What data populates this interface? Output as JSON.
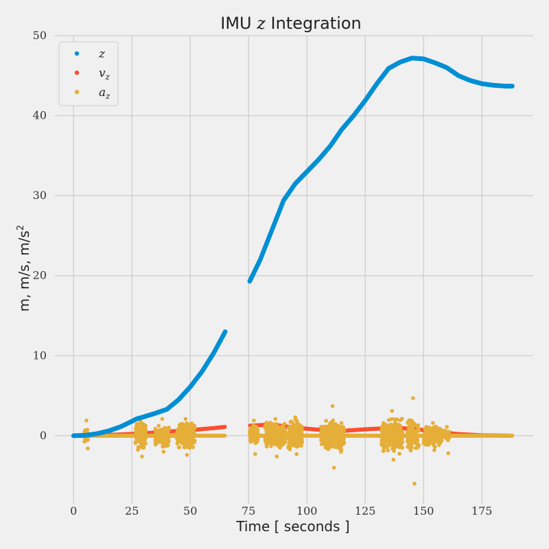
{
  "chart_data": {
    "type": "scatter",
    "title": {
      "prefix": "IMU ",
      "variable": "z",
      "suffix": " Integration"
    },
    "xlabel": "Time [ seconds ]",
    "ylabel": {
      "text": "m, m/s, m/s",
      "superscript": "2"
    },
    "xlim": [
      -8,
      197
    ],
    "ylim": [
      -8.5,
      50
    ],
    "xticks": [
      0,
      25,
      50,
      75,
      100,
      125,
      150,
      175
    ],
    "yticks": [
      0,
      10,
      20,
      30,
      40,
      50
    ],
    "grid": true,
    "legend_position": "top-left",
    "gap": [
      65,
      75.5
    ],
    "colors": {
      "background": "#f0f0f0",
      "grid": "#cbcbcb",
      "z": "#008fd5",
      "vz": "#fc4f30",
      "az": "#e5ae38"
    },
    "series": [
      {
        "name": "z",
        "legend_symbol": "z",
        "legend_subscript": "",
        "color_key": "z",
        "points": [
          [
            0,
            0
          ],
          [
            5,
            0.05
          ],
          [
            10,
            0.25
          ],
          [
            15,
            0.6
          ],
          [
            20,
            1.1
          ],
          [
            25,
            1.8
          ],
          [
            27,
            2.1
          ],
          [
            30,
            2.35
          ],
          [
            35,
            2.8
          ],
          [
            40,
            3.3
          ],
          [
            45,
            4.5
          ],
          [
            50,
            6.1
          ],
          [
            55,
            8.0
          ],
          [
            60,
            10.3
          ],
          [
            65,
            13.0
          ],
          [
            75.5,
            19.3
          ],
          [
            80,
            22.0
          ],
          [
            85,
            25.7
          ],
          [
            90,
            29.4
          ],
          [
            95,
            31.5
          ],
          [
            100,
            33.0
          ],
          [
            105,
            34.5
          ],
          [
            110,
            36.2
          ],
          [
            115,
            38.3
          ],
          [
            120,
            40.0
          ],
          [
            125,
            41.9
          ],
          [
            130,
            44.0
          ],
          [
            135,
            45.9
          ],
          [
            140,
            46.7
          ],
          [
            145,
            47.2
          ],
          [
            150,
            47.1
          ],
          [
            155,
            46.6
          ],
          [
            160,
            46.0
          ],
          [
            165,
            45.0
          ],
          [
            170,
            44.4
          ],
          [
            175,
            44.0
          ],
          [
            180,
            43.8
          ],
          [
            185,
            43.7
          ],
          [
            188,
            43.7
          ]
        ]
      },
      {
        "name": "v_z",
        "legend_symbol": "v",
        "legend_subscript": "z",
        "color_key": "vz",
        "points": [
          [
            0,
            0
          ],
          [
            10,
            0.05
          ],
          [
            20,
            0.15
          ],
          [
            30,
            0.3
          ],
          [
            40,
            0.5
          ],
          [
            50,
            0.7
          ],
          [
            60,
            0.95
          ],
          [
            65,
            1.1
          ],
          [
            75.5,
            1.25
          ],
          [
            85,
            1.4
          ],
          [
            95,
            1.0
          ],
          [
            105,
            0.75
          ],
          [
            115,
            0.6
          ],
          [
            125,
            0.8
          ],
          [
            135,
            0.95
          ],
          [
            145,
            0.9
          ],
          [
            155,
            0.5
          ],
          [
            165,
            0.2
          ],
          [
            175,
            0.05
          ],
          [
            188,
            0
          ]
        ]
      },
      {
        "name": "a_z",
        "legend_symbol": "a",
        "legend_subscript": "z",
        "color_key": "az",
        "baseline": 0,
        "bursts": [
          [
            4.5,
            6.5,
            1.0,
            1.9,
            -1.6
          ],
          [
            26.5,
            31,
            2.2,
            2.2,
            -2.6
          ],
          [
            35,
            41,
            1.6,
            2.1,
            -2.0
          ],
          [
            44,
            52,
            2.0,
            2.1,
            -2.4
          ],
          [
            75.5,
            79,
            1.5,
            1.9,
            -2.3
          ],
          [
            82,
            91,
            2.2,
            2.1,
            -2.6
          ],
          [
            92,
            98,
            2.4,
            2.3,
            -2.3
          ],
          [
            106,
            116,
            2.6,
            3.7,
            -4.0
          ],
          [
            132,
            141,
            2.6,
            3.1,
            -3.0
          ],
          [
            143,
            148,
            2.6,
            4.7,
            -6.0
          ],
          [
            150,
            158,
            1.6,
            1.6,
            -1.8
          ],
          [
            159,
            161,
            0.8,
            1.1,
            -2.2
          ]
        ]
      }
    ]
  }
}
